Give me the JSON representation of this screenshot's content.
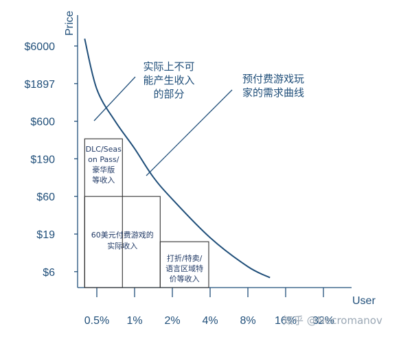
{
  "chart_data": {
    "type": "line",
    "xlabel": "User",
    "ylabel": "Price",
    "x_ticks": [
      "0.5%",
      "1%",
      "2%",
      "4%",
      "8%",
      "16%",
      "32%"
    ],
    "y_ticks": [
      "$6000",
      "$1897",
      "$600",
      "$190",
      "$60",
      "$19",
      "$6"
    ],
    "x_scale": "log",
    "y_scale": "log",
    "series": [
      {
        "points": [
          {
            "x": "0.4%",
            "y": 7500
          },
          {
            "x": "0.5%",
            "y": 1600
          },
          {
            "x": "0.7%",
            "y": 600
          },
          {
            "x": "1%",
            "y": 260
          },
          {
            "x": "1.4%",
            "y": 110
          },
          {
            "x": "2%",
            "y": 55
          },
          {
            "x": "4%",
            "y": 17
          },
          {
            "x": "8%",
            "y": 7
          },
          {
            "x": "12%",
            "y": 5
          }
        ]
      }
    ],
    "boxes": [
      {
        "label": "DLC/Seas on Pass/ 豪华版 等收入",
        "x_range": [
          "0.4%",
          "0.8%"
        ],
        "y_range": [
          60,
          350
        ]
      },
      {
        "label": "60美元付费游戏的 实际收入",
        "x_range": [
          "0.4%",
          "1.6%"
        ],
        "y_range": [
          5,
          60
        ]
      },
      {
        "label": "打折/特卖/ 语言区域特 价等收入",
        "x_range": [
          "1.6%",
          "3.9%"
        ],
        "y_range": [
          5,
          15
        ]
      }
    ],
    "annotations": [
      "实际上不可 能产生收入 的部分",
      "预付费游戏玩 家的需求曲线"
    ]
  },
  "watermark": "知乎 @Necromanov"
}
